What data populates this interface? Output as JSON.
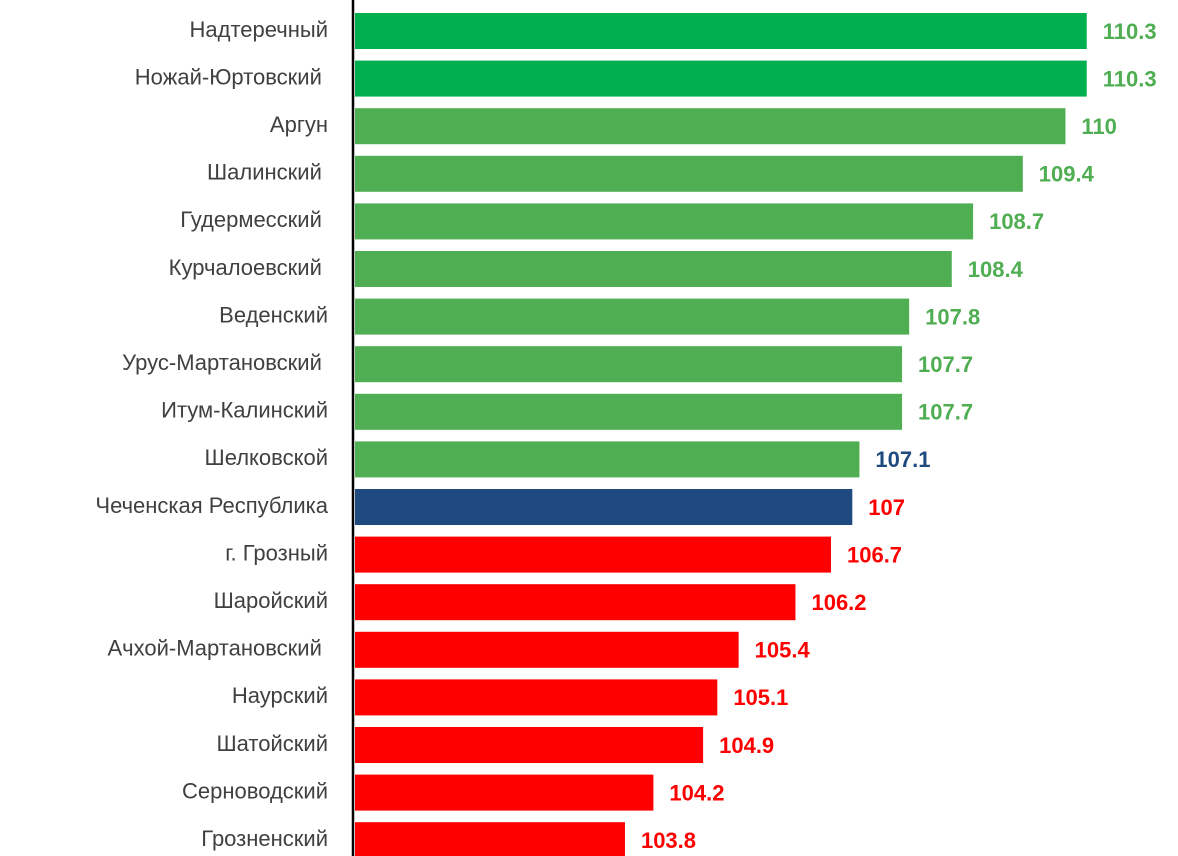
{
  "chart_data": {
    "type": "barh",
    "categories": [
      "Надтеречный",
      "Ножай-Юртовский ",
      "Аргун",
      "Шалинский ",
      "Гудермесский ",
      "Курчалоевский ",
      "Веденский",
      "Урус-Мартановский ",
      "Итум-Калинский",
      "Шелковской",
      "Чеченская Республика",
      "г. Грозный",
      "Шаройский",
      "Ачхой-Мартановский ",
      "Наурский",
      "Шатойский",
      "Серноводский",
      "Грозненский"
    ],
    "values": [
      110.3,
      110.3,
      110,
      109.4,
      108.7,
      108.4,
      107.8,
      107.7,
      107.7,
      107.1,
      107,
      106.7,
      106.2,
      105.4,
      105.1,
      104.9,
      104.2,
      103.8
    ],
    "colors": [
      "#00b050",
      "#00b050",
      "#4fad52",
      "#4fad52",
      "#4fad52",
      "#4fad52",
      "#4fad52",
      "#4fad52",
      "#4fad52",
      "#4fad52",
      "#1f4a7f",
      "#ff0000",
      "#ff0000",
      "#ff0000",
      "#ff0000",
      "#ff0000",
      "#ff0000",
      "#ff0000"
    ],
    "label_colors": [
      "#4fad52",
      "#4fad52",
      "#4fad52",
      "#4fad52",
      "#4fad52",
      "#4fad52",
      "#4fad52",
      "#4fad52",
      "#4fad52",
      "#1f4a7f",
      "#ff0000",
      "#ff0000",
      "#ff0000",
      "#ff0000",
      "#ff0000",
      "#ff0000",
      "#ff0000",
      "#ff0000"
    ],
    "xlim": [
      100,
      111.5
    ]
  }
}
